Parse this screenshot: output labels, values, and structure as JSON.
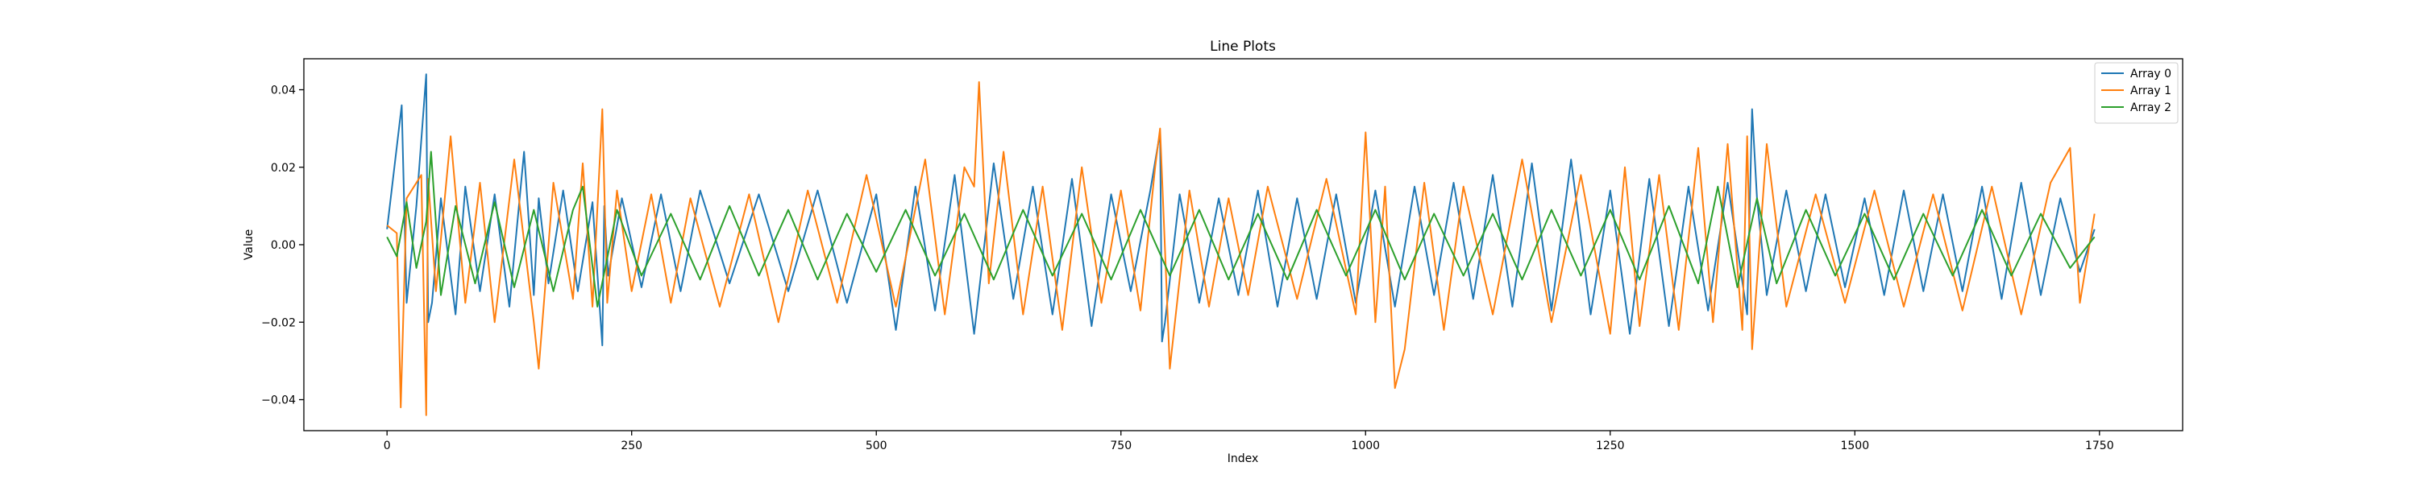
{
  "chart_data": {
    "type": "line",
    "title": "Line Plots",
    "xlabel": "Index",
    "ylabel": "Value",
    "xlim": [
      -85,
      1835
    ],
    "ylim": [
      -0.048,
      0.048
    ],
    "xticks": [
      0,
      250,
      500,
      750,
      1000,
      1250,
      1500,
      1750
    ],
    "xtick_labels": [
      "0",
      "250",
      "500",
      "750",
      "1000",
      "1250",
      "1500",
      "1750"
    ],
    "yticks": [
      -0.04,
      -0.02,
      0.0,
      0.02,
      0.04
    ],
    "ytick_labels": [
      "−0.04",
      "−0.02",
      "0.00",
      "0.02",
      "0.04"
    ],
    "grid": false,
    "legend_position": "top-right",
    "series": [
      {
        "name": "Array 0",
        "color": "#1f77b4",
        "x": [
          0,
          15,
          20,
          30,
          40,
          42,
          46,
          55,
          70,
          80,
          95,
          110,
          125,
          140,
          150,
          155,
          165,
          180,
          195,
          210,
          220,
          222,
          226,
          240,
          260,
          280,
          300,
          320,
          350,
          380,
          410,
          440,
          470,
          500,
          520,
          540,
          560,
          580,
          600,
          620,
          640,
          660,
          680,
          700,
          720,
          740,
          760,
          780,
          790,
          792,
          795,
          810,
          830,
          850,
          870,
          890,
          910,
          930,
          950,
          970,
          990,
          1010,
          1030,
          1050,
          1070,
          1090,
          1110,
          1130,
          1150,
          1170,
          1190,
          1210,
          1230,
          1250,
          1270,
          1290,
          1310,
          1330,
          1350,
          1370,
          1390,
          1395,
          1400,
          1410,
          1430,
          1450,
          1470,
          1490,
          1510,
          1530,
          1550,
          1570,
          1590,
          1610,
          1630,
          1650,
          1670,
          1690,
          1710,
          1730,
          1745
        ],
        "y": [
          0.004,
          0.036,
          -0.015,
          0.01,
          0.044,
          -0.02,
          -0.015,
          0.012,
          -0.018,
          0.015,
          -0.012,
          0.013,
          -0.016,
          0.024,
          -0.013,
          0.012,
          -0.01,
          0.014,
          -0.012,
          0.011,
          -0.026,
          0.01,
          -0.008,
          0.012,
          -0.011,
          0.013,
          -0.012,
          0.014,
          -0.01,
          0.013,
          -0.012,
          0.014,
          -0.015,
          0.013,
          -0.022,
          0.015,
          -0.017,
          0.018,
          -0.023,
          0.021,
          -0.014,
          0.015,
          -0.018,
          0.017,
          -0.021,
          0.013,
          -0.012,
          0.014,
          0.029,
          -0.025,
          -0.02,
          0.013,
          -0.015,
          0.012,
          -0.013,
          0.014,
          -0.016,
          0.012,
          -0.014,
          0.013,
          -0.015,
          0.014,
          -0.016,
          0.015,
          -0.013,
          0.016,
          -0.014,
          0.018,
          -0.016,
          0.021,
          -0.017,
          0.022,
          -0.018,
          0.014,
          -0.023,
          0.017,
          -0.021,
          0.015,
          -0.017,
          0.016,
          -0.018,
          0.035,
          0.012,
          -0.013,
          0.014,
          -0.012,
          0.013,
          -0.011,
          0.012,
          -0.013,
          0.014,
          -0.012,
          0.013,
          -0.012,
          0.015,
          -0.014,
          0.016,
          -0.013,
          0.012,
          -0.007,
          0.004
        ]
      },
      {
        "name": "Array 1",
        "color": "#ff7f0e",
        "x": [
          0,
          10,
          14,
          20,
          35,
          40,
          42,
          50,
          65,
          80,
          95,
          110,
          130,
          150,
          155,
          170,
          190,
          200,
          210,
          220,
          225,
          235,
          250,
          270,
          290,
          310,
          340,
          370,
          400,
          430,
          460,
          490,
          520,
          550,
          570,
          590,
          600,
          605,
          615,
          630,
          650,
          670,
          690,
          710,
          730,
          750,
          770,
          785,
          790,
          800,
          820,
          840,
          860,
          880,
          900,
          930,
          960,
          990,
          1000,
          1010,
          1020,
          1030,
          1040,
          1060,
          1080,
          1100,
          1130,
          1160,
          1190,
          1220,
          1250,
          1265,
          1280,
          1300,
          1320,
          1340,
          1355,
          1370,
          1385,
          1390,
          1395,
          1410,
          1430,
          1460,
          1490,
          1520,
          1550,
          1580,
          1610,
          1640,
          1670,
          1700,
          1720,
          1730,
          1745
        ],
        "y": [
          0.005,
          0.003,
          -0.042,
          0.012,
          0.018,
          -0.044,
          0.017,
          -0.012,
          0.028,
          -0.015,
          0.016,
          -0.02,
          0.022,
          -0.02,
          -0.032,
          0.016,
          -0.014,
          0.021,
          -0.016,
          0.035,
          -0.015,
          0.014,
          -0.012,
          0.013,
          -0.015,
          0.012,
          -0.016,
          0.013,
          -0.02,
          0.014,
          -0.015,
          0.018,
          -0.016,
          0.022,
          -0.018,
          0.02,
          0.015,
          0.042,
          -0.01,
          0.024,
          -0.018,
          0.015,
          -0.022,
          0.02,
          -0.015,
          0.014,
          -0.017,
          0.02,
          0.03,
          -0.032,
          0.014,
          -0.016,
          0.012,
          -0.013,
          0.015,
          -0.014,
          0.017,
          -0.018,
          0.029,
          -0.02,
          0.015,
          -0.037,
          -0.027,
          0.016,
          -0.022,
          0.015,
          -0.018,
          0.022,
          -0.02,
          0.018,
          -0.023,
          0.02,
          -0.021,
          0.018,
          -0.022,
          0.025,
          -0.02,
          0.026,
          -0.022,
          0.028,
          -0.027,
          0.026,
          -0.016,
          0.013,
          -0.015,
          0.014,
          -0.016,
          0.013,
          -0.017,
          0.015,
          -0.018,
          0.016,
          0.025,
          -0.015,
          0.008
        ]
      },
      {
        "name": "Array 2",
        "color": "#2ca02c",
        "x": [
          0,
          10,
          20,
          30,
          40,
          45,
          55,
          70,
          90,
          110,
          130,
          150,
          170,
          190,
          200,
          215,
          235,
          260,
          290,
          320,
          350,
          380,
          410,
          440,
          470,
          500,
          530,
          560,
          590,
          620,
          650,
          680,
          710,
          740,
          770,
          800,
          830,
          860,
          890,
          920,
          950,
          980,
          1010,
          1040,
          1070,
          1100,
          1130,
          1160,
          1190,
          1220,
          1250,
          1280,
          1310,
          1340,
          1360,
          1380,
          1400,
          1420,
          1450,
          1480,
          1510,
          1540,
          1570,
          1600,
          1630,
          1660,
          1690,
          1720,
          1745
        ],
        "y": [
          0.002,
          -0.003,
          0.011,
          -0.006,
          0.006,
          0.024,
          -0.013,
          0.01,
          -0.01,
          0.011,
          -0.011,
          0.009,
          -0.012,
          0.009,
          0.015,
          -0.016,
          0.009,
          -0.008,
          0.008,
          -0.009,
          0.01,
          -0.008,
          0.009,
          -0.009,
          0.008,
          -0.007,
          0.009,
          -0.008,
          0.008,
          -0.009,
          0.009,
          -0.008,
          0.008,
          -0.009,
          0.009,
          -0.008,
          0.009,
          -0.009,
          0.008,
          -0.009,
          0.009,
          -0.008,
          0.009,
          -0.009,
          0.008,
          -0.008,
          0.008,
          -0.009,
          0.009,
          -0.008,
          0.009,
          -0.009,
          0.01,
          -0.01,
          0.015,
          -0.011,
          0.012,
          -0.01,
          0.009,
          -0.008,
          0.008,
          -0.009,
          0.008,
          -0.008,
          0.009,
          -0.008,
          0.008,
          -0.006,
          0.002
        ]
      }
    ]
  }
}
